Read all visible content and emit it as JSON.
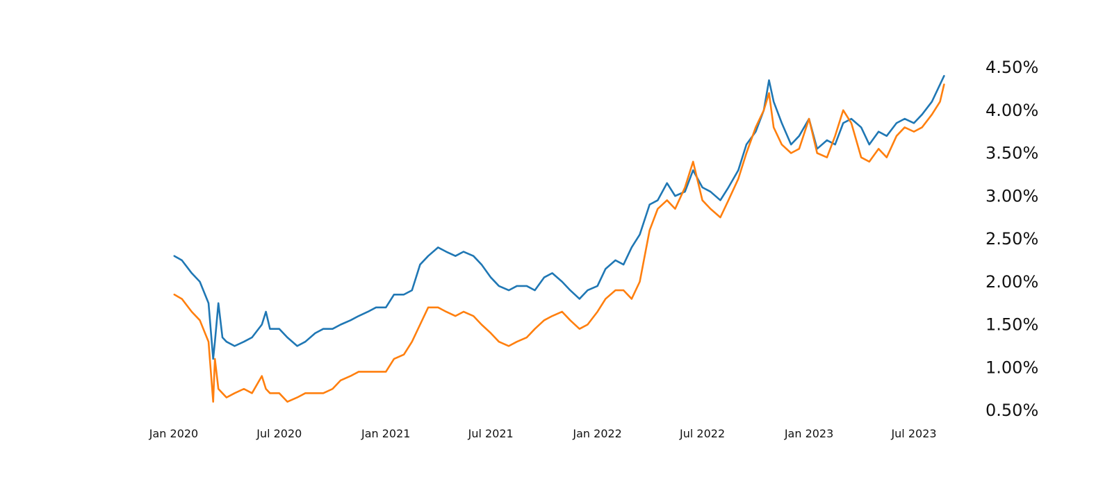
{
  "chart_data": {
    "type": "line",
    "title": "",
    "xlabel": "",
    "ylabel": "",
    "grid": false,
    "legend": "none",
    "x_range": [
      "2020-01-01",
      "2023-08-31"
    ],
    "ylim": [
      0.4,
      4.6
    ],
    "y_unit": "%",
    "y_axis_side": "right",
    "x_ticks": [
      {
        "date": "2020-01-01",
        "label": "Jan 2020"
      },
      {
        "date": "2020-07-01",
        "label": "Jul 2020"
      },
      {
        "date": "2021-01-01",
        "label": "Jan 2021"
      },
      {
        "date": "2021-07-01",
        "label": "Jul 2021"
      },
      {
        "date": "2022-01-01",
        "label": "Jan 2022"
      },
      {
        "date": "2022-07-01",
        "label": "Jul 2022"
      },
      {
        "date": "2023-01-01",
        "label": "Jan 2023"
      },
      {
        "date": "2023-07-01",
        "label": "Jul 2023"
      }
    ],
    "y_ticks": [
      {
        "value": 0.5,
        "label": "0.50%"
      },
      {
        "value": 1.0,
        "label": "1.00%"
      },
      {
        "value": 1.5,
        "label": "1.50%"
      },
      {
        "value": 2.0,
        "label": "2.00%"
      },
      {
        "value": 2.5,
        "label": "2.50%"
      },
      {
        "value": 3.0,
        "label": "3.00%"
      },
      {
        "value": 3.5,
        "label": "3.50%"
      },
      {
        "value": 4.0,
        "label": "4.00%"
      },
      {
        "value": 4.5,
        "label": "4.50%"
      }
    ],
    "series": [
      {
        "color": "#1f77b4",
        "x": [
          "2020-01-02",
          "2020-01-15",
          "2020-02-01",
          "2020-02-15",
          "2020-03-01",
          "2020-03-09",
          "2020-03-12",
          "2020-03-18",
          "2020-03-25",
          "2020-04-01",
          "2020-04-15",
          "2020-05-01",
          "2020-05-15",
          "2020-06-01",
          "2020-06-08",
          "2020-06-15",
          "2020-07-01",
          "2020-07-15",
          "2020-08-01",
          "2020-08-15",
          "2020-09-01",
          "2020-09-15",
          "2020-10-01",
          "2020-10-15",
          "2020-11-01",
          "2020-11-15",
          "2020-12-01",
          "2020-12-15",
          "2021-01-01",
          "2021-01-15",
          "2021-02-01",
          "2021-02-15",
          "2021-03-01",
          "2021-03-15",
          "2021-04-01",
          "2021-04-15",
          "2021-05-01",
          "2021-05-15",
          "2021-06-01",
          "2021-06-15",
          "2021-07-01",
          "2021-07-15",
          "2021-08-01",
          "2021-08-15",
          "2021-09-01",
          "2021-09-15",
          "2021-10-01",
          "2021-10-15",
          "2021-11-01",
          "2021-11-15",
          "2021-12-01",
          "2021-12-15",
          "2022-01-01",
          "2022-01-15",
          "2022-02-01",
          "2022-02-15",
          "2022-03-01",
          "2022-03-15",
          "2022-04-01",
          "2022-04-15",
          "2022-05-01",
          "2022-05-15",
          "2022-06-01",
          "2022-06-15",
          "2022-07-01",
          "2022-07-15",
          "2022-08-01",
          "2022-08-15",
          "2022-09-01",
          "2022-09-15",
          "2022-10-01",
          "2022-10-15",
          "2022-10-24",
          "2022-11-01",
          "2022-11-15",
          "2022-12-01",
          "2022-12-15",
          "2023-01-01",
          "2023-01-15",
          "2023-02-01",
          "2023-02-15",
          "2023-03-01",
          "2023-03-15",
          "2023-04-01",
          "2023-04-15",
          "2023-05-01",
          "2023-05-15",
          "2023-06-01",
          "2023-06-15",
          "2023-07-01",
          "2023-07-15",
          "2023-08-01",
          "2023-08-15",
          "2023-08-22"
        ],
        "y": [
          2.3,
          2.25,
          2.1,
          2.0,
          1.75,
          1.1,
          1.3,
          1.75,
          1.35,
          1.3,
          1.25,
          1.3,
          1.35,
          1.5,
          1.65,
          1.45,
          1.45,
          1.35,
          1.25,
          1.3,
          1.4,
          1.45,
          1.45,
          1.5,
          1.55,
          1.6,
          1.65,
          1.7,
          1.7,
          1.85,
          1.85,
          1.9,
          2.2,
          2.3,
          2.4,
          2.35,
          2.3,
          2.35,
          2.3,
          2.2,
          2.05,
          1.95,
          1.9,
          1.95,
          1.95,
          1.9,
          2.05,
          2.1,
          2.0,
          1.9,
          1.8,
          1.9,
          1.95,
          2.15,
          2.25,
          2.2,
          2.4,
          2.55,
          2.9,
          2.95,
          3.15,
          3.0,
          3.05,
          3.3,
          3.1,
          3.05,
          2.95,
          3.1,
          3.3,
          3.6,
          3.75,
          4.0,
          4.35,
          4.1,
          3.85,
          3.6,
          3.7,
          3.9,
          3.55,
          3.65,
          3.6,
          3.85,
          3.9,
          3.8,
          3.6,
          3.75,
          3.7,
          3.85,
          3.9,
          3.85,
          3.95,
          4.1,
          4.3,
          4.4
        ]
      },
      {
        "color": "#ff7f0e",
        "x": [
          "2020-01-02",
          "2020-01-15",
          "2020-02-01",
          "2020-02-15",
          "2020-03-01",
          "2020-03-09",
          "2020-03-12",
          "2020-03-18",
          "2020-03-25",
          "2020-04-01",
          "2020-04-15",
          "2020-05-01",
          "2020-05-15",
          "2020-06-01",
          "2020-06-08",
          "2020-06-15",
          "2020-07-01",
          "2020-07-15",
          "2020-08-01",
          "2020-08-15",
          "2020-09-01",
          "2020-09-15",
          "2020-10-01",
          "2020-10-15",
          "2020-11-01",
          "2020-11-15",
          "2020-12-01",
          "2020-12-15",
          "2021-01-01",
          "2021-01-15",
          "2021-02-01",
          "2021-02-15",
          "2021-03-01",
          "2021-03-15",
          "2021-04-01",
          "2021-04-15",
          "2021-05-01",
          "2021-05-15",
          "2021-06-01",
          "2021-06-15",
          "2021-07-01",
          "2021-07-15",
          "2021-08-01",
          "2021-08-15",
          "2021-09-01",
          "2021-09-15",
          "2021-10-01",
          "2021-10-15",
          "2021-11-01",
          "2021-11-15",
          "2021-12-01",
          "2021-12-15",
          "2022-01-01",
          "2022-01-15",
          "2022-02-01",
          "2022-02-15",
          "2022-03-01",
          "2022-03-15",
          "2022-04-01",
          "2022-04-15",
          "2022-05-01",
          "2022-05-15",
          "2022-06-01",
          "2022-06-15",
          "2022-07-01",
          "2022-07-15",
          "2022-08-01",
          "2022-08-15",
          "2022-09-01",
          "2022-09-15",
          "2022-10-01",
          "2022-10-15",
          "2022-10-24",
          "2022-11-01",
          "2022-11-15",
          "2022-12-01",
          "2022-12-15",
          "2023-01-01",
          "2023-01-15",
          "2023-02-01",
          "2023-02-15",
          "2023-03-01",
          "2023-03-15",
          "2023-04-01",
          "2023-04-15",
          "2023-05-01",
          "2023-05-15",
          "2023-06-01",
          "2023-06-15",
          "2023-07-01",
          "2023-07-15",
          "2023-08-01",
          "2023-08-15",
          "2023-08-22"
        ],
        "y": [
          1.85,
          1.8,
          1.65,
          1.55,
          1.3,
          0.6,
          1.1,
          0.75,
          0.7,
          0.65,
          0.7,
          0.75,
          0.7,
          0.9,
          0.75,
          0.7,
          0.7,
          0.6,
          0.65,
          0.7,
          0.7,
          0.7,
          0.75,
          0.85,
          0.9,
          0.95,
          0.95,
          0.95,
          0.95,
          1.1,
          1.15,
          1.3,
          1.5,
          1.7,
          1.7,
          1.65,
          1.6,
          1.65,
          1.6,
          1.5,
          1.4,
          1.3,
          1.25,
          1.3,
          1.35,
          1.45,
          1.55,
          1.6,
          1.65,
          1.55,
          1.45,
          1.5,
          1.65,
          1.8,
          1.9,
          1.9,
          1.8,
          2.0,
          2.6,
          2.85,
          2.95,
          2.85,
          3.1,
          3.4,
          2.95,
          2.85,
          2.75,
          2.95,
          3.2,
          3.5,
          3.8,
          4.0,
          4.2,
          3.8,
          3.6,
          3.5,
          3.55,
          3.9,
          3.5,
          3.45,
          3.7,
          4.0,
          3.85,
          3.45,
          3.4,
          3.55,
          3.45,
          3.7,
          3.8,
          3.75,
          3.8,
          3.95,
          4.1,
          4.3
        ]
      }
    ]
  }
}
